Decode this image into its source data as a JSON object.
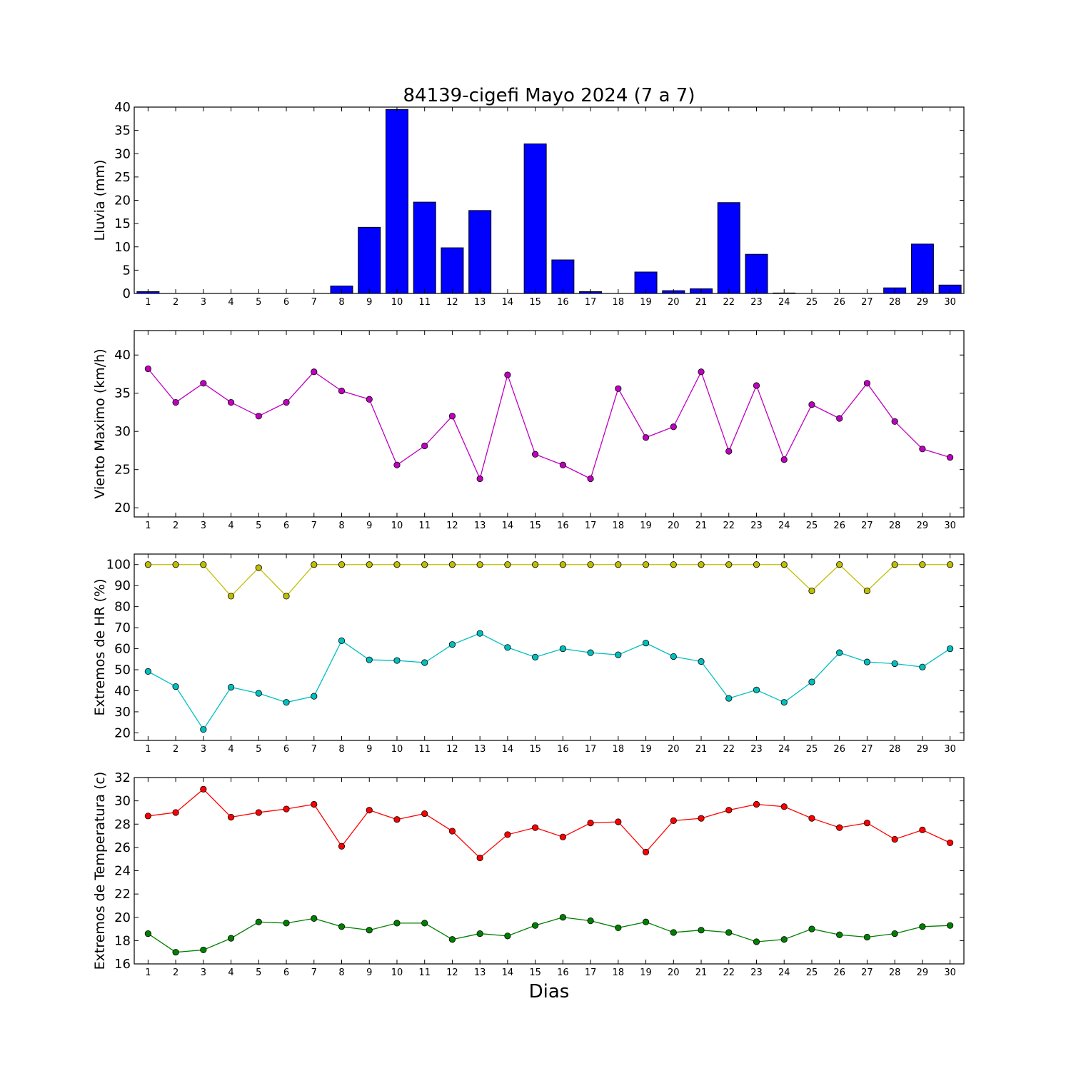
{
  "figure": {
    "title": "84139-cigefi Mayo 2024  (7 a 7)",
    "xlabel": "Dias"
  },
  "chart_data": [
    {
      "id": "lluvia",
      "type": "bar",
      "ylabel": "Lluvia (mm)",
      "ylim": [
        0,
        40
      ],
      "yticks": [
        0,
        5,
        10,
        15,
        20,
        25,
        30,
        35,
        40
      ],
      "xlim": [
        0.5,
        30.5
      ],
      "categories": [
        1,
        2,
        3,
        4,
        5,
        6,
        7,
        8,
        9,
        10,
        11,
        12,
        13,
        14,
        15,
        16,
        17,
        18,
        19,
        20,
        21,
        22,
        23,
        24,
        25,
        26,
        27,
        28,
        29,
        30
      ],
      "series": [
        {
          "color": "#0000ff",
          "values": [
            0.4,
            0,
            0,
            0,
            0,
            0,
            0,
            1.6,
            14.2,
            39.5,
            19.6,
            9.8,
            17.8,
            0,
            32.1,
            7.2,
            0.4,
            0,
            4.6,
            0.6,
            1.0,
            19.5,
            8.4,
            0.1,
            0,
            0,
            0,
            1.2,
            10.6,
            1.8
          ]
        }
      ],
      "grid": false
    },
    {
      "id": "viento",
      "type": "line",
      "ylabel": "Viento Maximo (km/h)",
      "ylim": [
        18.8,
        43.2
      ],
      "yticks": [
        20,
        25,
        30,
        35,
        40
      ],
      "xlim": [
        0.5,
        30.5
      ],
      "x": [
        1,
        2,
        3,
        4,
        5,
        6,
        7,
        8,
        9,
        10,
        11,
        12,
        13,
        14,
        15,
        16,
        17,
        18,
        19,
        20,
        21,
        22,
        23,
        24,
        25,
        26,
        27,
        28,
        29,
        30
      ],
      "series": [
        {
          "color": "#bf00bf",
          "values": [
            38.2,
            33.8,
            36.3,
            33.8,
            32.0,
            33.8,
            37.8,
            35.3,
            34.2,
            25.6,
            28.1,
            32.0,
            23.8,
            37.4,
            27.0,
            25.6,
            23.8,
            35.6,
            29.2,
            30.6,
            37.8,
            27.4,
            36.0,
            26.3,
            33.5,
            31.7,
            36.3,
            31.3,
            27.7,
            26.6
          ]
        }
      ],
      "grid": false
    },
    {
      "id": "hr",
      "type": "line",
      "ylabel": "Extremos de HR (%)",
      "ylim": [
        16.4,
        105
      ],
      "yticks": [
        20,
        30,
        40,
        50,
        60,
        70,
        80,
        90,
        100
      ],
      "xlim": [
        0.5,
        30.5
      ],
      "x": [
        1,
        2,
        3,
        4,
        5,
        6,
        7,
        8,
        9,
        10,
        11,
        12,
        13,
        14,
        15,
        16,
        17,
        18,
        19,
        20,
        21,
        22,
        23,
        24,
        25,
        26,
        27,
        28,
        29,
        30
      ],
      "series": [
        {
          "color": "#bfbf00",
          "values": [
            100,
            100,
            100,
            85,
            98.5,
            85,
            100,
            100,
            100,
            100,
            100,
            100,
            100,
            100,
            100,
            100,
            100,
            100,
            100,
            100,
            100,
            100,
            100,
            100,
            87.5,
            100,
            87.5,
            100,
            100,
            100
          ]
        },
        {
          "color": "#00bfbf",
          "values": [
            49.2,
            42.0,
            21.6,
            41.7,
            38.8,
            34.5,
            37.4,
            63.8,
            54.7,
            54.4,
            53.4,
            62.0,
            67.3,
            60.6,
            56.0,
            60.0,
            58.1,
            57.1,
            62.7,
            56.3,
            53.9,
            36.4,
            40.4,
            34.5,
            44.2,
            58.1,
            53.7,
            52.9,
            51.3,
            60.0
          ]
        }
      ],
      "grid": false
    },
    {
      "id": "temp",
      "type": "line",
      "ylabel": "Extremos de Temperatura (c)",
      "ylim": [
        16,
        32
      ],
      "yticks": [
        16,
        18,
        20,
        22,
        24,
        26,
        28,
        30,
        32
      ],
      "xlim": [
        0.5,
        30.5
      ],
      "x": [
        1,
        2,
        3,
        4,
        5,
        6,
        7,
        8,
        9,
        10,
        11,
        12,
        13,
        14,
        15,
        16,
        17,
        18,
        19,
        20,
        21,
        22,
        23,
        24,
        25,
        26,
        27,
        28,
        29,
        30
      ],
      "series": [
        {
          "color": "#ff0000",
          "values": [
            28.7,
            29.0,
            31.0,
            28.6,
            29.0,
            29.3,
            29.7,
            26.1,
            29.2,
            28.4,
            28.9,
            27.4,
            25.1,
            27.1,
            27.7,
            26.9,
            28.1,
            28.2,
            25.6,
            28.3,
            28.5,
            29.2,
            29.7,
            29.5,
            28.5,
            27.7,
            28.1,
            26.7,
            27.5,
            26.4
          ]
        },
        {
          "color": "#008000",
          "values": [
            18.6,
            17.0,
            17.2,
            18.2,
            19.6,
            19.5,
            19.9,
            19.2,
            18.9,
            19.5,
            19.5,
            18.1,
            18.6,
            18.4,
            19.3,
            20.0,
            19.7,
            19.1,
            19.6,
            18.7,
            18.9,
            18.7,
            17.9,
            18.1,
            19.0,
            18.5,
            18.3,
            18.6,
            19.2,
            19.3
          ]
        }
      ],
      "grid": false
    }
  ]
}
